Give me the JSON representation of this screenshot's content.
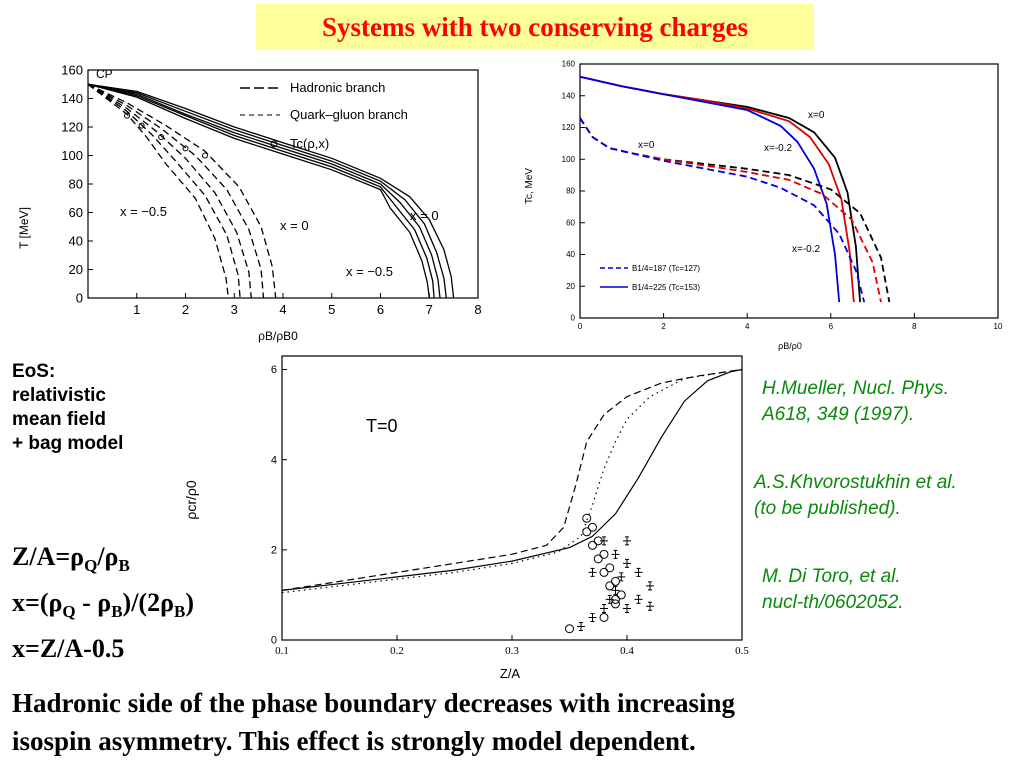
{
  "slide": {
    "title": "Systems with two conserving charges",
    "eos_lines": [
      "EoS:",
      "relativistic",
      "mean field",
      "+ bag model"
    ],
    "formula": {
      "line1": {
        "a": "Z/A=ρ",
        "s1": "Q",
        "b": "/ρ",
        "s2": "B"
      },
      "line2": {
        "a": "x=(ρ",
        "s1": "Q",
        "b": " - ρ",
        "s2": "B",
        "c": ")/(2ρ",
        "s3": "B",
        "d": ")"
      },
      "line3": "x=Z/A-0.5"
    },
    "refs": {
      "r1_l1": "H.Mueller, Nucl. Phys.",
      "r1_l2": "A618, 349 (1997).",
      "r2_l1": "A.S.Khvorostukhin et al.",
      "r2_l2": "(to be published).",
      "r3_l1": "M. Di Toro, et al.",
      "r3_l2": "nucl-th/0602052."
    },
    "conclusion_l1": "Hadronic side of the phase boundary decreases with increasing",
    "conclusion_l2": "isospin asymmetry. This effect is strongly model dependent."
  },
  "chart_data": [
    {
      "type": "line",
      "id": "left-plot",
      "xlabel": "ρB/ρB0",
      "ylabel": "T [MeV]",
      "xlim": [
        0,
        8
      ],
      "ylim": [
        0,
        160
      ],
      "xticks": [
        "1",
        "2",
        "3",
        "4",
        "5",
        "6",
        "7",
        "8"
      ],
      "yticks": [
        "0",
        "20",
        "40",
        "60",
        "80",
        "100",
        "120",
        "140",
        "160"
      ],
      "legend": {
        "hadronic": "Hadronic branch",
        "quark": "Quark–gluon branch",
        "tc": "Tc(ρ,x)"
      },
      "annotations": {
        "cp": "CP",
        "xm05_left": "x = −0.5",
        "x0_mid": "x = 0",
        "x0_right": "x = 0",
        "xm05_right": "x = −0.5"
      },
      "series": [
        {
          "style": "solid",
          "x": [
            0,
            1,
            2,
            3,
            4,
            5,
            6,
            6.6,
            7,
            7.3,
            7.45,
            7.5
          ],
          "y": [
            150,
            145,
            133,
            120,
            109,
            98,
            84,
            71,
            55,
            34,
            15,
            0
          ]
        },
        {
          "style": "solid",
          "x": [
            0,
            1,
            2,
            3,
            4,
            5,
            6,
            6.5,
            6.9,
            7.15,
            7.3,
            7.35
          ],
          "y": [
            150,
            144,
            131,
            118,
            107,
            96,
            82,
            69,
            52,
            32,
            14,
            0
          ]
        },
        {
          "style": "solid",
          "x": [
            0,
            1,
            2,
            3,
            4,
            5,
            6,
            6.4,
            6.8,
            7.05,
            7.18,
            7.22
          ],
          "y": [
            150,
            143,
            129,
            116,
            105,
            94,
            80,
            67,
            50,
            30,
            13,
            0
          ]
        },
        {
          "style": "solid",
          "x": [
            0,
            1,
            2,
            3,
            4,
            5,
            6,
            6.3,
            6.7,
            6.95,
            7.07,
            7.1
          ],
          "y": [
            150,
            142,
            128,
            114,
            103,
            92,
            78,
            65,
            48,
            28,
            12,
            0
          ]
        },
        {
          "style": "solid",
          "x": [
            0,
            1,
            2,
            3,
            4,
            5,
            6,
            6.2,
            6.6,
            6.85,
            6.96,
            7.0
          ],
          "y": [
            150,
            141,
            126,
            112,
            101,
            90,
            76,
            63,
            46,
            26,
            11,
            0
          ]
        },
        {
          "style": "dashed",
          "x": [
            0,
            0.8,
            1.6,
            2.4,
            3.1,
            3.55,
            3.78,
            3.85
          ],
          "y": [
            150,
            137,
            121,
            103,
            78,
            50,
            22,
            0
          ]
        },
        {
          "style": "dashed",
          "x": [
            0,
            0.8,
            1.5,
            2.2,
            2.85,
            3.3,
            3.55,
            3.6
          ],
          "y": [
            150,
            135,
            119,
            100,
            76,
            48,
            20,
            0
          ]
        },
        {
          "style": "dashed",
          "x": [
            0,
            0.8,
            1.4,
            2.0,
            2.6,
            3.05,
            3.3,
            3.35
          ],
          "y": [
            150,
            133,
            117,
            98,
            74,
            46,
            18,
            0
          ]
        },
        {
          "style": "dashed",
          "x": [
            0,
            0.8,
            1.3,
            1.8,
            2.4,
            2.85,
            3.08,
            3.12
          ],
          "y": [
            150,
            131,
            115,
            96,
            72,
            44,
            16,
            0
          ]
        },
        {
          "style": "dashed",
          "x": [
            0,
            0.8,
            1.2,
            1.6,
            2.2,
            2.6,
            2.83,
            2.88
          ],
          "y": [
            150,
            129,
            113,
            94,
            70,
            42,
            14,
            0
          ]
        }
      ],
      "tc_points": {
        "x": [
          0.8,
          1.1,
          1.5,
          2.0,
          2.4
        ],
        "y": [
          128,
          121,
          113,
          105,
          100
        ]
      }
    },
    {
      "type": "line",
      "id": "right-plot",
      "xlabel": "ρB/ρ0",
      "ylabel": "Tc, MeV",
      "xlim": [
        0,
        10
      ],
      "ylim": [
        0,
        160
      ],
      "xticks": [
        "0",
        "2",
        "4",
        "6",
        "8",
        "10"
      ],
      "yticks": [
        "0",
        "20",
        "40",
        "60",
        "80",
        "100",
        "120",
        "140",
        "160"
      ],
      "legend": {
        "l1": "B1/4=187 (Tc=127)",
        "l2": "B1/4=225 (Tc=153)"
      },
      "annotations": {
        "x0_top": "x=0",
        "xm02_top": "x=-0.2",
        "x0_low": "x=0",
        "xm02_low": "x=-0.2"
      },
      "series": [
        {
          "name": "",
          "color": "#000000",
          "style": "solid",
          "x": [
            0,
            1,
            2,
            3,
            4,
            5,
            5.6,
            6.1,
            6.4,
            6.6,
            6.7
          ],
          "y": [
            152,
            146,
            141,
            137,
            133,
            126,
            117,
            101,
            79,
            45,
            10
          ]
        },
        {
          "name": "",
          "color": "#dd0000",
          "style": "solid",
          "x": [
            0,
            1,
            2,
            3,
            4,
            5,
            5.5,
            5.95,
            6.25,
            6.45,
            6.55
          ],
          "y": [
            152,
            146,
            141,
            137,
            132,
            124,
            114,
            97,
            75,
            42,
            10
          ]
        },
        {
          "name": "",
          "color": "#0000dd",
          "style": "solid",
          "x": [
            0,
            1,
            2,
            3,
            4,
            4.8,
            5.2,
            5.6,
            5.9,
            6.1,
            6.2
          ],
          "y": [
            152,
            146,
            141,
            136,
            131,
            121,
            111,
            94,
            72,
            40,
            10
          ]
        },
        {
          "name": "",
          "color": "#000000",
          "style": "dashed",
          "x": [
            0,
            0.3,
            0.7,
            1.2,
            2,
            3,
            4,
            5,
            6,
            6.7,
            7.2,
            7.4
          ],
          "y": [
            126,
            114,
            107,
            104,
            100,
            97,
            94,
            90,
            81,
            66,
            38,
            10
          ]
        },
        {
          "name": "",
          "color": "#dd0000",
          "style": "dashed",
          "x": [
            0,
            0.3,
            0.7,
            1.2,
            2,
            3,
            4,
            5,
            5.8,
            6.5,
            7.0,
            7.2
          ],
          "y": [
            126,
            114,
            107,
            104,
            100,
            96,
            92,
            87,
            78,
            62,
            35,
            10
          ]
        },
        {
          "name": "",
          "color": "#0000dd",
          "style": "dashed",
          "x": [
            0,
            0.3,
            0.7,
            1.2,
            2,
            3,
            4,
            4.8,
            5.6,
            6.2,
            6.6,
            6.8
          ],
          "y": [
            126,
            114,
            107,
            104,
            99,
            94,
            89,
            82,
            71,
            53,
            30,
            10
          ]
        }
      ]
    },
    {
      "type": "line",
      "id": "bottom-plot",
      "xlabel": "Z/A",
      "ylabel": "ρcr/ρ0",
      "xlim": [
        0.1,
        0.5
      ],
      "ylim": [
        0,
        6.3
      ],
      "xticks": [
        "0.1",
        "0.2",
        "0.3",
        "0.4",
        "0.5"
      ],
      "yticks": [
        "0",
        "2",
        "4",
        "6"
      ],
      "annotations": {
        "t0": "T=0"
      },
      "series": [
        {
          "style": "solid",
          "x": [
            0.1,
            0.15,
            0.2,
            0.25,
            0.3,
            0.35,
            0.37,
            0.39,
            0.41,
            0.43,
            0.45,
            0.47,
            0.49,
            0.5
          ],
          "y": [
            1.1,
            1.25,
            1.4,
            1.55,
            1.75,
            2.05,
            2.3,
            2.8,
            3.6,
            4.5,
            5.3,
            5.75,
            5.95,
            6.0
          ]
        },
        {
          "style": "dashed",
          "x": [
            0.1,
            0.15,
            0.2,
            0.25,
            0.3,
            0.33,
            0.345,
            0.355,
            0.365,
            0.38,
            0.4,
            0.43,
            0.46,
            0.5
          ],
          "y": [
            1.1,
            1.3,
            1.5,
            1.7,
            1.9,
            2.1,
            2.5,
            3.4,
            4.4,
            5.0,
            5.4,
            5.7,
            5.85,
            6.0
          ]
        },
        {
          "style": "dotted",
          "x": [
            0.1,
            0.15,
            0.2,
            0.25,
            0.3,
            0.34,
            0.36,
            0.37,
            0.38,
            0.39,
            0.4,
            0.42,
            0.45,
            0.5
          ],
          "y": [
            1.05,
            1.2,
            1.35,
            1.5,
            1.7,
            1.95,
            2.3,
            3.0,
            3.8,
            4.4,
            4.9,
            5.4,
            5.8,
            6.0
          ]
        }
      ],
      "circle_points": {
        "x": [
          0.35,
          0.38,
          0.39,
          0.395,
          0.39,
          0.385,
          0.38,
          0.375,
          0.37,
          0.365,
          0.365,
          0.37,
          0.375,
          0.38,
          0.385,
          0.39
        ],
        "y": [
          0.25,
          0.5,
          0.8,
          1.0,
          1.3,
          1.6,
          1.9,
          2.2,
          2.5,
          2.7,
          2.4,
          2.1,
          1.8,
          1.5,
          1.2,
          0.9
        ]
      },
      "cross_points": {
        "x": [
          0.36,
          0.37,
          0.38,
          0.385,
          0.39,
          0.395,
          0.4,
          0.41,
          0.42,
          0.41,
          0.4,
          0.39,
          0.38,
          0.37,
          0.4,
          0.42
        ],
        "y": [
          0.3,
          0.5,
          0.7,
          0.9,
          1.1,
          1.4,
          1.7,
          1.5,
          1.2,
          0.9,
          0.7,
          1.9,
          2.2,
          1.5,
          2.2,
          0.75
        ]
      }
    }
  ]
}
